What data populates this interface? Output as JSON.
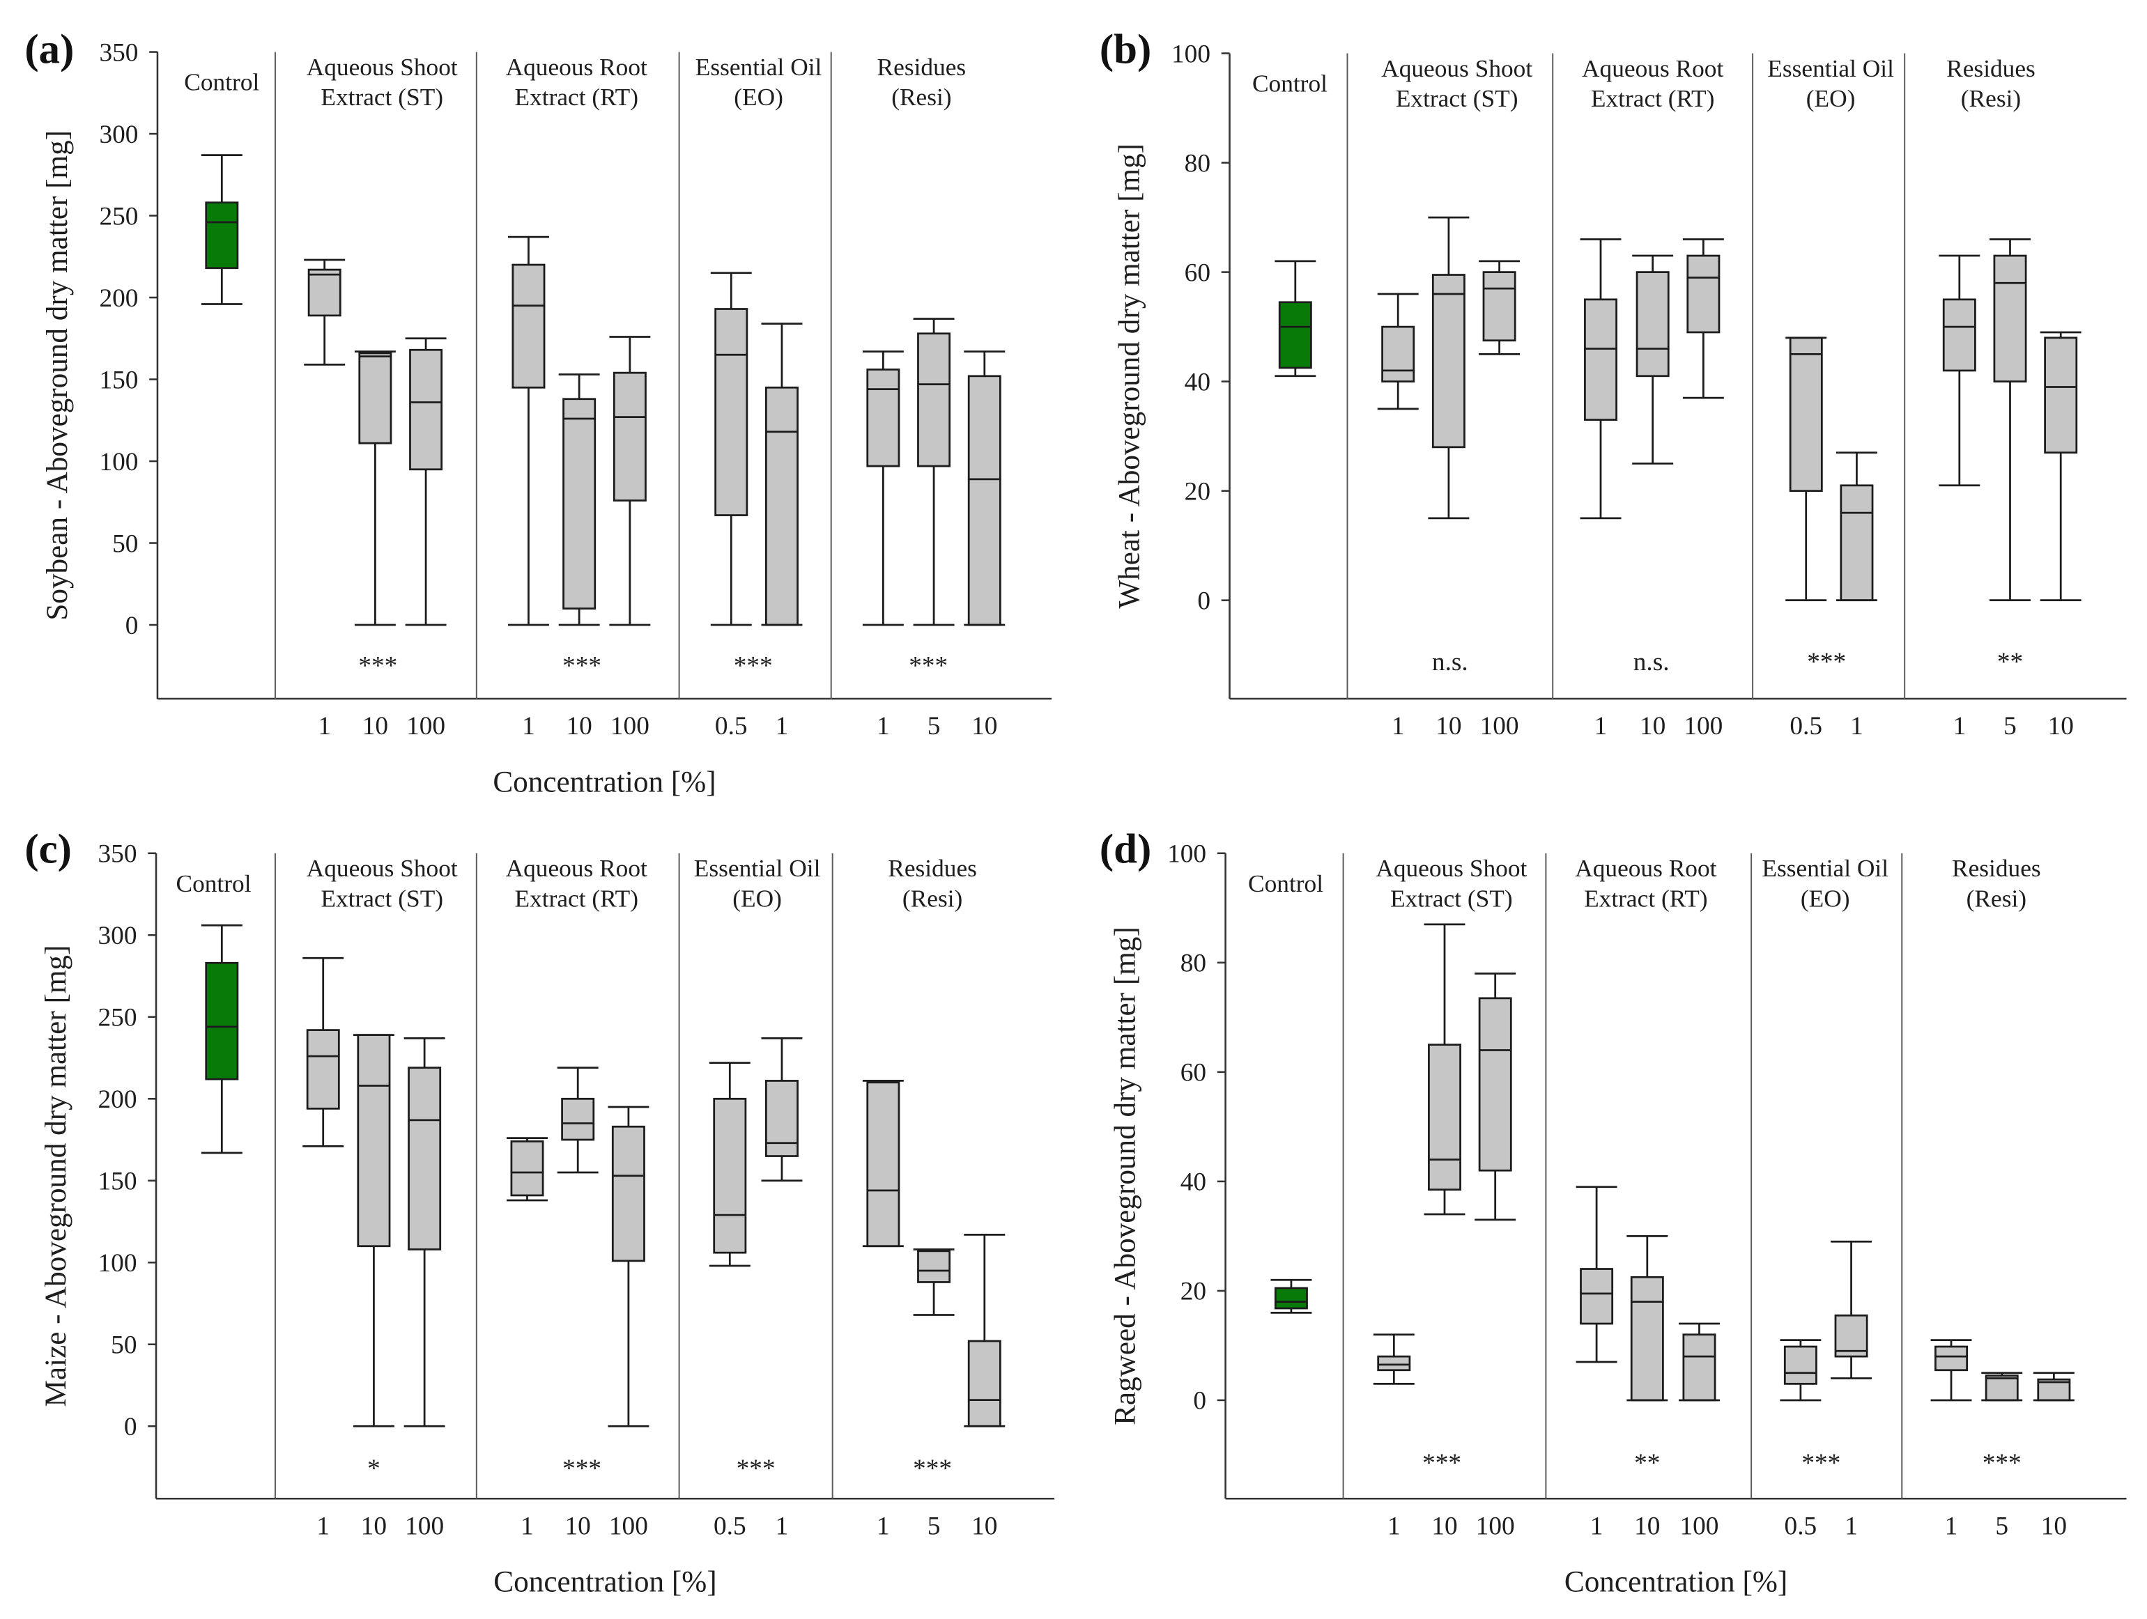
{
  "colors": {
    "control_fill": "#087a08",
    "treatment_fill": "#c6c6c6",
    "box_stroke": "#1c1c1c",
    "background": "#ffffff"
  },
  "chart_data": [
    {
      "panel_label": "(a)",
      "type": "box",
      "ylabel": "Soybean - Aboveground dry matter [mg]",
      "xlabel": "Concentration [%]",
      "ylim": [
        -45,
        350
      ],
      "yticks": [
        0,
        50,
        100,
        150,
        200,
        250,
        300,
        350
      ],
      "grid": false,
      "groups": [
        {
          "title_lines": [
            "Control"
          ],
          "boxes": [
            {
              "min": 196,
              "q1": 218,
              "median": 246,
              "q3": 258,
              "max": 287
            }
          ]
        },
        {
          "title_lines": [
            "Aqueous Shoot",
            "Extract (ST)"
          ],
          "significance": "***",
          "boxes": [
            {
              "x": "1",
              "min": 159,
              "q1": 189,
              "median": 214,
              "q3": 217,
              "max": 223
            },
            {
              "x": "10",
              "min": 0,
              "q1": 111,
              "median": 164,
              "q3": 166,
              "max": 167
            },
            {
              "x": "100",
              "min": 0,
              "q1": 95,
              "median": 136,
              "q3": 168,
              "max": 175
            }
          ]
        },
        {
          "title_lines": [
            "Aqueous Root",
            "Extract (RT)"
          ],
          "significance": "***",
          "boxes": [
            {
              "x": "1",
              "min": 0,
              "q1": 145,
              "median": 195,
              "q3": 220,
              "max": 237
            },
            {
              "x": "10",
              "min": 0,
              "q1": 10,
              "median": 126,
              "q3": 138,
              "max": 153
            },
            {
              "x": "100",
              "min": 0,
              "q1": 76,
              "median": 127,
              "q3": 154,
              "max": 176
            }
          ]
        },
        {
          "title_lines": [
            "Essential Oil",
            "(EO)"
          ],
          "significance": "***",
          "boxes": [
            {
              "x": "0.5",
              "min": 0,
              "q1": 67,
              "median": 165,
              "q3": 193,
              "max": 215
            },
            {
              "x": "1",
              "min": 0,
              "q1": 0,
              "median": 118,
              "q3": 145,
              "max": 184
            }
          ]
        },
        {
          "title_lines": [
            "Residues",
            "(Resi)"
          ],
          "significance": "***",
          "boxes": [
            {
              "x": "1",
              "min": 0,
              "q1": 97,
              "median": 144,
              "q3": 156,
              "max": 167
            },
            {
              "x": "5",
              "min": 0,
              "q1": 97,
              "median": 147,
              "q3": 178,
              "max": 187
            },
            {
              "x": "10",
              "min": 0,
              "q1": 0,
              "median": 89,
              "q3": 152,
              "max": 167
            }
          ]
        }
      ]
    },
    {
      "panel_label": "(b)",
      "type": "box",
      "ylabel": "Wheat - Aboveground dry matter [mg]",
      "ylim": [
        -18,
        100
      ],
      "yticks": [
        0,
        20,
        40,
        60,
        80,
        100
      ],
      "grid": false,
      "groups": [
        {
          "title_lines": [
            "Control"
          ],
          "boxes": [
            {
              "min": 41,
              "q1": 42.5,
              "median": 50,
              "q3": 54.5,
              "max": 62
            }
          ]
        },
        {
          "title_lines": [
            "Aqueous Shoot",
            "Extract (ST)"
          ],
          "significance": "n.s.",
          "boxes": [
            {
              "x": "1",
              "min": 35,
              "q1": 40,
              "median": 42,
              "q3": 50,
              "max": 56
            },
            {
              "x": "10",
              "min": 15,
              "q1": 28,
              "median": 56,
              "q3": 59.5,
              "max": 70
            },
            {
              "x": "100",
              "min": 45,
              "q1": 47.5,
              "median": 57,
              "q3": 60,
              "max": 62
            }
          ]
        },
        {
          "title_lines": [
            "Aqueous Root",
            "Extract (RT)"
          ],
          "significance": "n.s.",
          "boxes": [
            {
              "x": "1",
              "min": 15,
              "q1": 33,
              "median": 46,
              "q3": 55,
              "max": 66
            },
            {
              "x": "10",
              "min": 25,
              "q1": 41,
              "median": 46,
              "q3": 60,
              "max": 63
            },
            {
              "x": "100",
              "min": 37,
              "q1": 49,
              "median": 59,
              "q3": 63,
              "max": 66
            }
          ]
        },
        {
          "title_lines": [
            "Essential Oil",
            "(EO)"
          ],
          "significance": "***",
          "boxes": [
            {
              "x": "0.5",
              "min": 0,
              "q1": 20,
              "median": 45,
              "q3": 48,
              "max": 48
            },
            {
              "x": "1",
              "min": 0,
              "q1": 0,
              "median": 16,
              "q3": 21,
              "max": 27
            }
          ]
        },
        {
          "title_lines": [
            "Residues",
            "(Resi)"
          ],
          "significance": "**",
          "boxes": [
            {
              "x": "1",
              "min": 21,
              "q1": 42,
              "median": 50,
              "q3": 55,
              "max": 63
            },
            {
              "x": "5",
              "min": 0,
              "q1": 40,
              "median": 58,
              "q3": 63,
              "max": 66
            },
            {
              "x": "10",
              "min": 0,
              "q1": 27,
              "median": 39,
              "q3": 48,
              "max": 49
            }
          ]
        }
      ]
    },
    {
      "panel_label": "(c)",
      "type": "box",
      "ylabel": "Maize - Aboveground dry matter [mg]",
      "xlabel": "Concentration [%]",
      "ylim": [
        -44,
        350
      ],
      "yticks": [
        0,
        50,
        100,
        150,
        200,
        250,
        300,
        350
      ],
      "grid": false,
      "groups": [
        {
          "title_lines": [
            "Control"
          ],
          "boxes": [
            {
              "min": 167,
              "q1": 212,
              "median": 244,
              "q3": 283,
              "max": 306
            }
          ]
        },
        {
          "title_lines": [
            "Aqueous Shoot",
            "Extract (ST)"
          ],
          "significance": "*",
          "boxes": [
            {
              "x": "1",
              "min": 171,
              "q1": 194,
              "median": 226,
              "q3": 242,
              "max": 286
            },
            {
              "x": "10",
              "min": 0,
              "q1": 110,
              "median": 208,
              "q3": 239,
              "max": 239
            },
            {
              "x": "100",
              "min": 0,
              "q1": 108,
              "median": 187,
              "q3": 219,
              "max": 237
            }
          ]
        },
        {
          "title_lines": [
            "Aqueous Root",
            "Extract (RT)"
          ],
          "significance": "***",
          "boxes": [
            {
              "x": "1",
              "min": 138,
              "q1": 141,
              "median": 155,
              "q3": 174,
              "max": 176
            },
            {
              "x": "10",
              "min": 155,
              "q1": 175,
              "median": 185,
              "q3": 200,
              "max": 219
            },
            {
              "x": "100",
              "min": 0,
              "q1": 101,
              "median": 153,
              "q3": 183,
              "max": 195
            }
          ]
        },
        {
          "title_lines": [
            "Essential Oil",
            "(EO)"
          ],
          "significance": "***",
          "boxes": [
            {
              "x": "0.5",
              "min": 98,
              "q1": 106,
              "median": 129,
              "q3": 200,
              "max": 222
            },
            {
              "x": "1",
              "min": 150,
              "q1": 165,
              "median": 173,
              "q3": 211,
              "max": 237
            }
          ]
        },
        {
          "title_lines": [
            "Residues",
            "(Resi)"
          ],
          "significance": "***",
          "boxes": [
            {
              "x": "1",
              "min": 110,
              "q1": 110,
              "median": 144,
              "q3": 210,
              "max": 211
            },
            {
              "x": "5",
              "min": 68,
              "q1": 88,
              "median": 95,
              "q3": 107,
              "max": 108
            },
            {
              "x": "10",
              "min": 0,
              "q1": 0,
              "median": 16,
              "q3": 52,
              "max": 117
            }
          ]
        }
      ]
    },
    {
      "panel_label": "(d)",
      "type": "box",
      "ylabel": "Ragweed - Aboveground dry matter [mg]",
      "xlabel": "Concentration [%]",
      "ylim": [
        -18,
        100
      ],
      "yticks": [
        0,
        20,
        40,
        60,
        80,
        100
      ],
      "grid": false,
      "groups": [
        {
          "title_lines": [
            "Control"
          ],
          "boxes": [
            {
              "min": 16,
              "q1": 16.8,
              "median": 18,
              "q3": 20.5,
              "max": 22
            }
          ]
        },
        {
          "title_lines": [
            "Aqueous Shoot",
            "Extract (ST)"
          ],
          "significance": "***",
          "boxes": [
            {
              "x": "1",
              "min": 3,
              "q1": 5.5,
              "median": 6.5,
              "q3": 8,
              "max": 12
            },
            {
              "x": "10",
              "min": 34,
              "q1": 38.5,
              "median": 44,
              "q3": 65,
              "max": 87
            },
            {
              "x": "100",
              "min": 33,
              "q1": 42,
              "median": 64,
              "q3": 73.5,
              "max": 78
            }
          ]
        },
        {
          "title_lines": [
            "Aqueous Root",
            "Extract (RT)"
          ],
          "significance": "**",
          "boxes": [
            {
              "x": "1",
              "min": 7,
              "q1": 14,
              "median": 19.5,
              "q3": 24,
              "max": 39
            },
            {
              "x": "10",
              "min": 0,
              "q1": 0,
              "median": 18,
              "q3": 22.5,
              "max": 30
            },
            {
              "x": "100",
              "min": 0,
              "q1": 0,
              "median": 8,
              "q3": 12,
              "max": 14
            }
          ]
        },
        {
          "title_lines": [
            "Essential Oil",
            "(EO)"
          ],
          "significance": "***",
          "boxes": [
            {
              "x": "0.5",
              "min": 0,
              "q1": 3,
              "median": 5,
              "q3": 9.8,
              "max": 11
            },
            {
              "x": "1",
              "min": 4,
              "q1": 8,
              "median": 9,
              "q3": 15.5,
              "max": 29
            }
          ]
        },
        {
          "title_lines": [
            "Residues",
            "(Resi)"
          ],
          "significance": "***",
          "boxes": [
            {
              "x": "1",
              "min": 0,
              "q1": 5.5,
              "median": 8,
              "q3": 9.8,
              "max": 11
            },
            {
              "x": "5",
              "min": 0,
              "q1": 0,
              "median": 4,
              "q3": 4.5,
              "max": 5
            },
            {
              "x": "10",
              "min": 0,
              "q1": 0,
              "median": 3.3,
              "q3": 3.8,
              "max": 5
            }
          ]
        }
      ]
    }
  ]
}
